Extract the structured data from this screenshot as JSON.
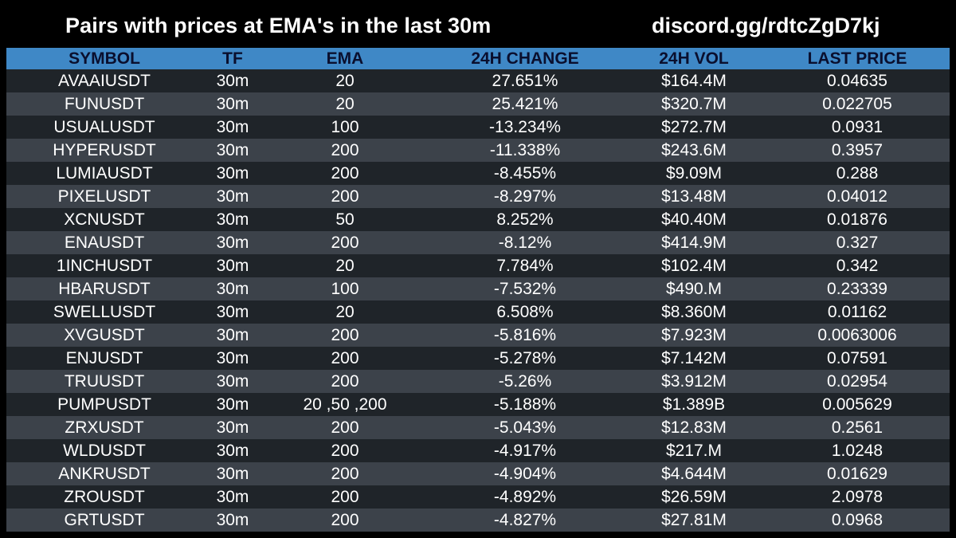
{
  "header": {
    "title": "Pairs with prices at EMA's in the last 30m",
    "invite": "discord.gg/rdtcZgD7kj"
  },
  "colors": {
    "background": "#000000",
    "header_row": "#3f88c6",
    "row_dark": "#1f2429",
    "row_light": "#3c424a",
    "header_text": "#0a0f2e",
    "text": "#ffffff"
  },
  "table": {
    "columns": [
      "SYMBOL",
      "TF",
      "EMA",
      "24H CHANGE",
      "24H VOL",
      "LAST PRICE"
    ],
    "rows": [
      [
        "AVAAIUSDT",
        "30m",
        "20",
        "27.651%",
        "$164.4M",
        "0.04635"
      ],
      [
        "FUNUSDT",
        "30m",
        "20",
        "25.421%",
        "$320.7M",
        "0.022705"
      ],
      [
        "USUALUSDT",
        "30m",
        "100",
        "-13.234%",
        "$272.7M",
        "0.0931"
      ],
      [
        "HYPERUSDT",
        "30m",
        "200",
        "-11.338%",
        "$243.6M",
        "0.3957"
      ],
      [
        "LUMIAUSDT",
        "30m",
        "200",
        "-8.455%",
        "$9.09M",
        "0.288"
      ],
      [
        "PIXELUSDT",
        "30m",
        "200",
        "-8.297%",
        "$13.48M",
        "0.04012"
      ],
      [
        "XCNUSDT",
        "30m",
        "50",
        "8.252%",
        "$40.40M",
        "0.01876"
      ],
      [
        "ENAUSDT",
        "30m",
        "200",
        "-8.12%",
        "$414.9M",
        "0.327"
      ],
      [
        "1INCHUSDT",
        "30m",
        "20",
        "7.784%",
        "$102.4M",
        "0.342"
      ],
      [
        "HBARUSDT",
        "30m",
        "100",
        "-7.532%",
        "$490.M",
        "0.23339"
      ],
      [
        "SWELLUSDT",
        "30m",
        "20",
        "6.508%",
        "$8.360M",
        "0.01162"
      ],
      [
        "XVGUSDT",
        "30m",
        "200",
        "-5.816%",
        "$7.923M",
        "0.0063006"
      ],
      [
        "ENJUSDT",
        "30m",
        "200",
        "-5.278%",
        "$7.142M",
        "0.07591"
      ],
      [
        "TRUUSDT",
        "30m",
        "200",
        "-5.26%",
        "$3.912M",
        "0.02954"
      ],
      [
        "PUMPUSDT",
        "30m",
        "20 ,50 ,200",
        "-5.188%",
        "$1.389B",
        "0.005629"
      ],
      [
        "ZRXUSDT",
        "30m",
        "200",
        "-5.043%",
        "$12.83M",
        "0.2561"
      ],
      [
        "WLDUSDT",
        "30m",
        "200",
        "-4.917%",
        "$217.M",
        "1.0248"
      ],
      [
        "ANKRUSDT",
        "30m",
        "200",
        "-4.904%",
        "$4.644M",
        "0.01629"
      ],
      [
        "ZROUSDT",
        "30m",
        "200",
        "-4.892%",
        "$26.59M",
        "2.0978"
      ],
      [
        "GRTUSDT",
        "30m",
        "200",
        "-4.827%",
        "$27.81M",
        "0.0968"
      ]
    ]
  }
}
